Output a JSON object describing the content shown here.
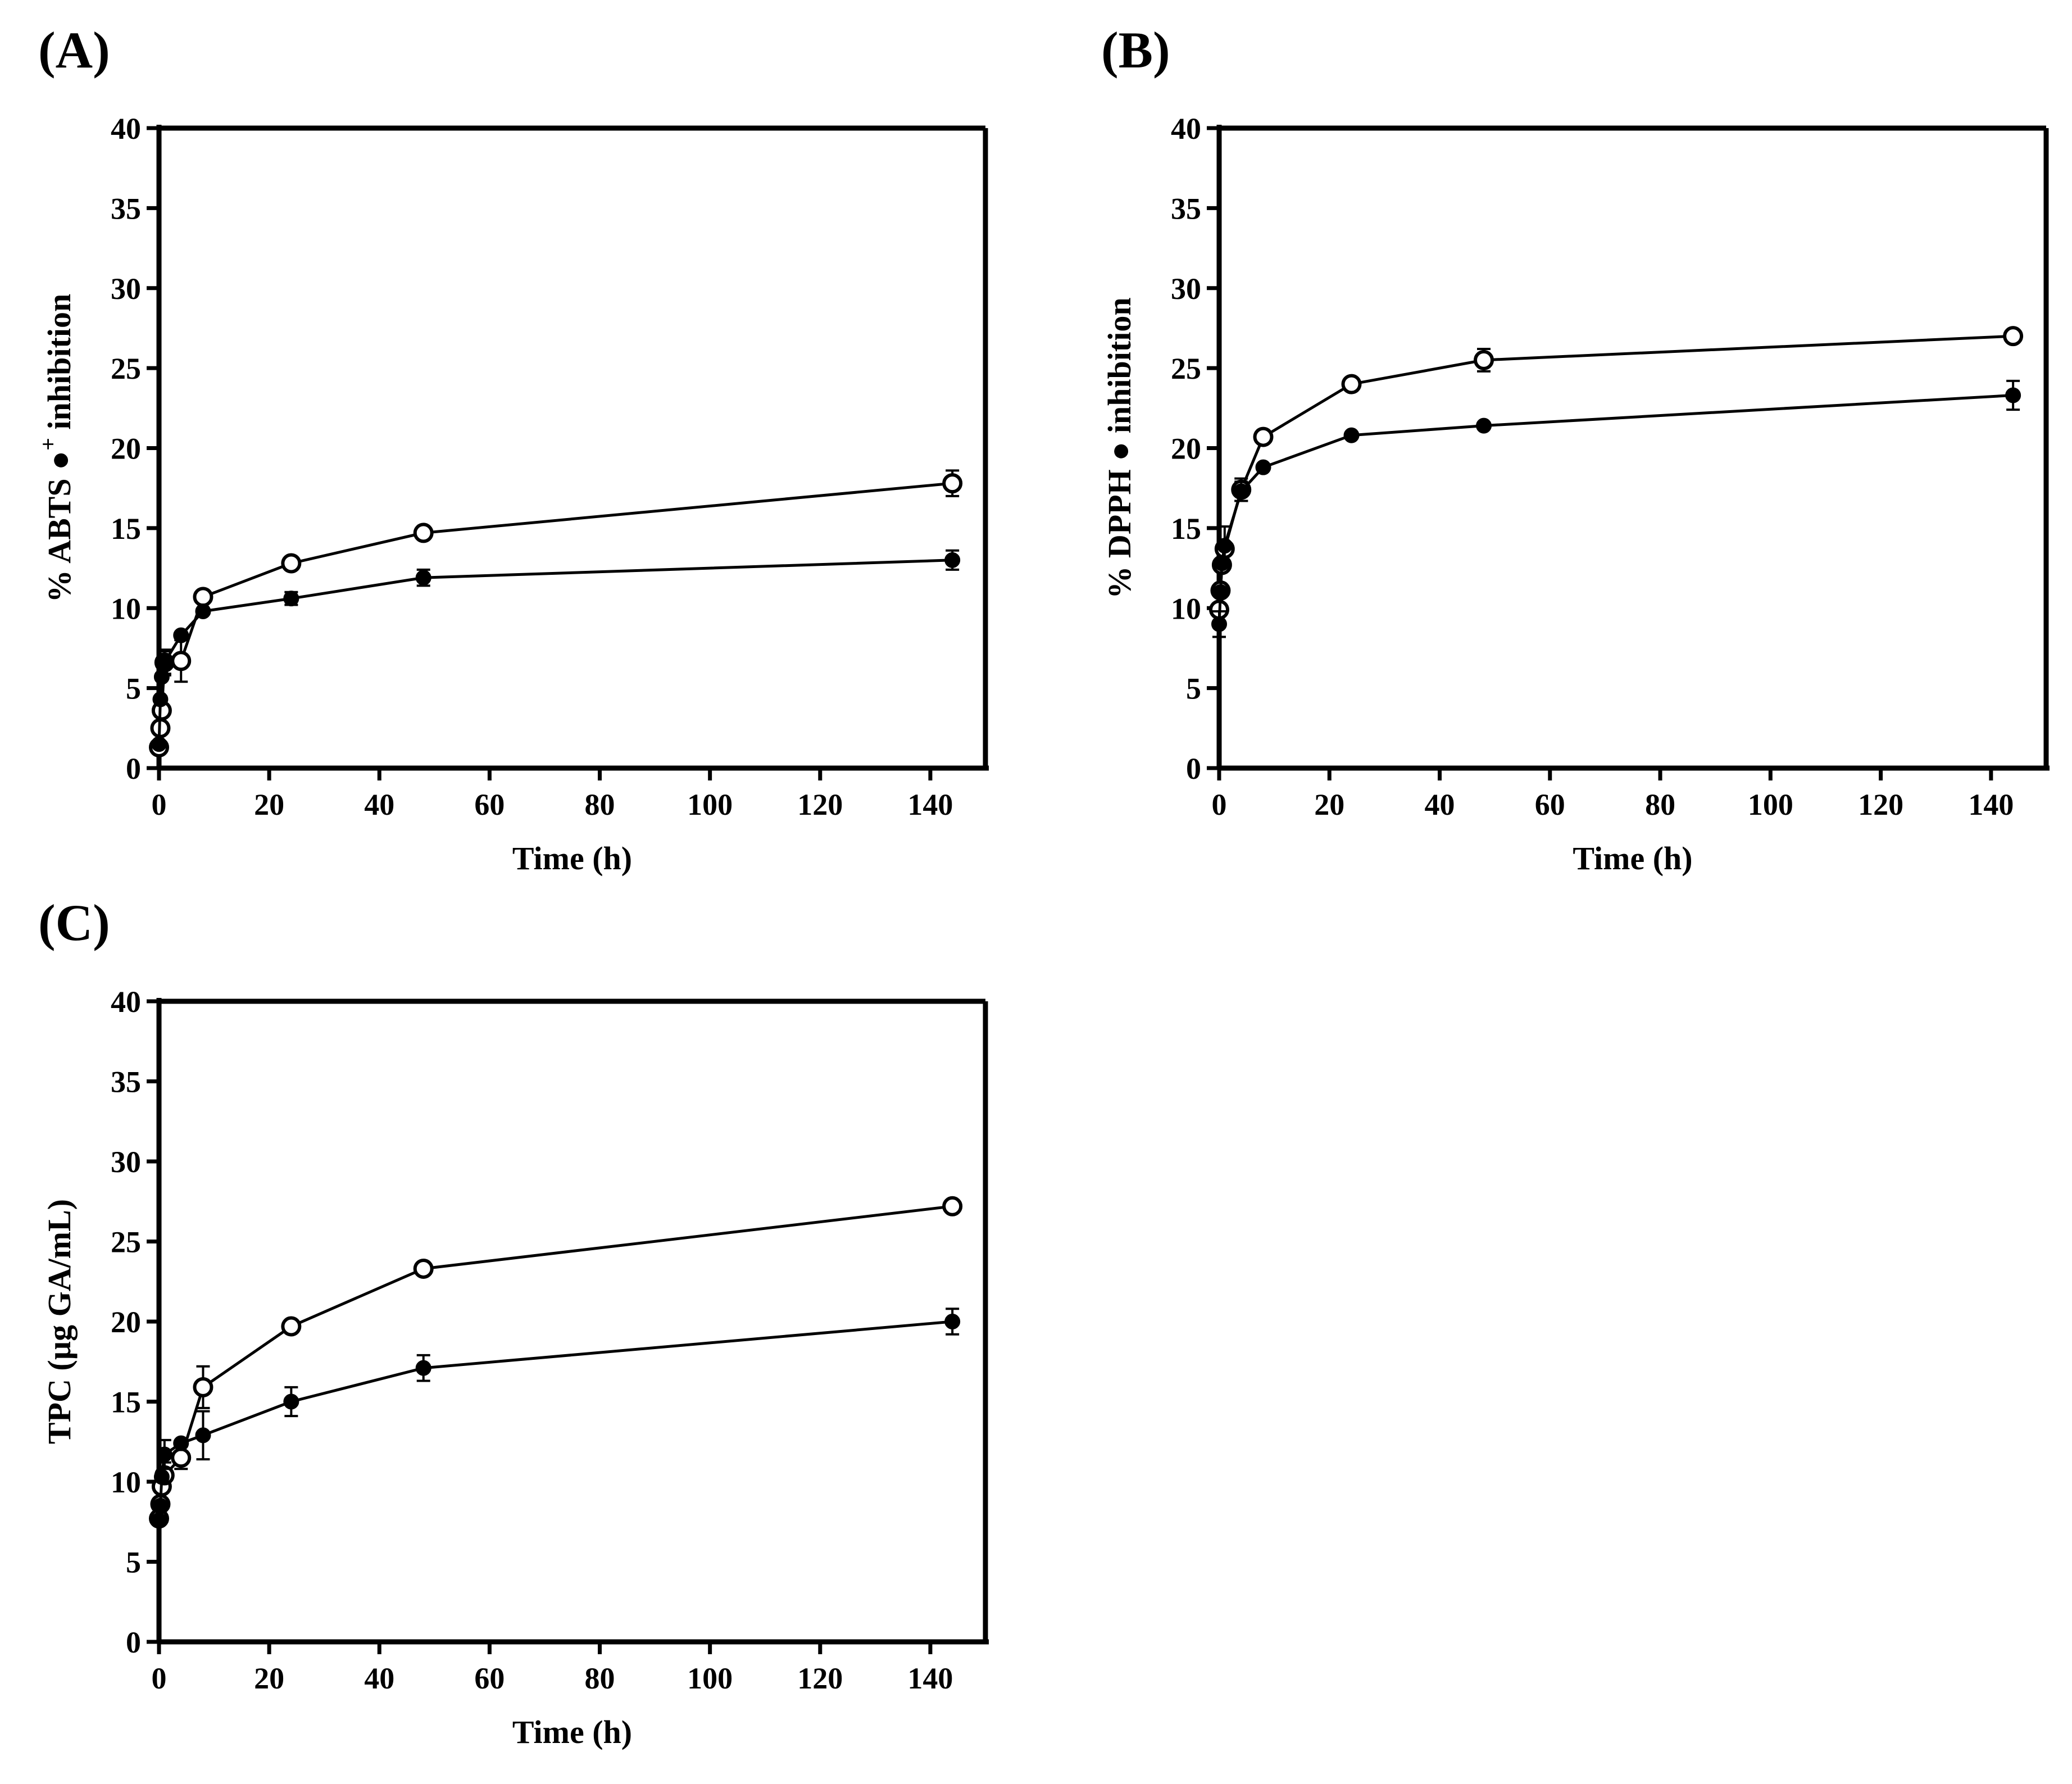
{
  "figure": {
    "panels": [
      "(A)",
      "(B)",
      "(C)"
    ]
  },
  "chart_data": [
    {
      "type": "line",
      "panel_label": "(A)",
      "xlabel": "Time (h)",
      "ylabel": "% ABTS ●+ inhibition",
      "ylabel_parts": {
        "pre": "% ABTS ",
        "symbol": "●",
        "sup": "+",
        "post": " inhibition"
      },
      "xlim": [
        0,
        150
      ],
      "ylim": [
        0,
        40
      ],
      "x_ticks": [
        0,
        20,
        40,
        60,
        80,
        100,
        120,
        140
      ],
      "y_ticks": [
        0,
        5,
        10,
        15,
        20,
        25,
        30,
        35,
        40
      ],
      "series": [
        {
          "name": "open circles",
          "marker": "open-circle",
          "x": [
            0,
            0.25,
            0.5,
            1,
            4,
            8,
            24,
            48,
            144
          ],
          "y": [
            1.3,
            2.5,
            3.6,
            6.6,
            6.7,
            10.7,
            12.8,
            14.7,
            17.8
          ],
          "err": [
            0,
            0,
            0,
            0.7,
            1.3,
            0,
            0,
            0,
            0.8
          ]
        },
        {
          "name": "filled circles",
          "marker": "filled-circle",
          "x": [
            0,
            0.25,
            0.5,
            1,
            4,
            8,
            24,
            48,
            144
          ],
          "y": [
            1.5,
            4.3,
            5.7,
            6.6,
            8.3,
            9.8,
            10.6,
            11.9,
            13.0
          ],
          "err": [
            0,
            0,
            0,
            0.8,
            0,
            0,
            0.4,
            0.5,
            0.6
          ]
        }
      ]
    },
    {
      "type": "line",
      "panel_label": "(B)",
      "xlabel": "Time (h)",
      "ylabel": "% DPPH ● inhibition",
      "ylabel_parts": {
        "pre": "% DPPH ",
        "symbol": "●",
        "sup": "",
        "post": " inhibition"
      },
      "xlim": [
        0,
        150
      ],
      "ylim": [
        0,
        40
      ],
      "x_ticks": [
        0,
        20,
        40,
        60,
        80,
        100,
        120,
        140
      ],
      "y_ticks": [
        0,
        5,
        10,
        15,
        20,
        25,
        30,
        35,
        40
      ],
      "series": [
        {
          "name": "open circles",
          "marker": "open-circle",
          "x": [
            0,
            0.25,
            0.5,
            1,
            4,
            8,
            24,
            48,
            144
          ],
          "y": [
            9.9,
            11.1,
            12.7,
            13.7,
            17.4,
            20.7,
            24.0,
            25.5,
            27.0
          ],
          "err": [
            0,
            0,
            0,
            0,
            0.7,
            0,
            0,
            0.7,
            0
          ]
        },
        {
          "name": "filled circles",
          "marker": "filled-circle",
          "x": [
            0,
            0.25,
            0.5,
            1,
            4,
            8,
            24,
            48,
            144
          ],
          "y": [
            9.0,
            11.0,
            12.8,
            13.9,
            17.3,
            18.8,
            20.8,
            21.4,
            23.3
          ],
          "err": [
            0.8,
            0,
            0,
            1.2,
            0.6,
            0,
            0,
            0,
            0.9
          ]
        }
      ]
    },
    {
      "type": "line",
      "panel_label": "(C)",
      "xlabel": "Time (h)",
      "ylabel": "TPC (µg GA/mL)",
      "ylabel_parts": {
        "pre": "TPC (µg GA/mL)",
        "symbol": "",
        "sup": "",
        "post": ""
      },
      "xlim": [
        0,
        150
      ],
      "ylim": [
        0,
        40
      ],
      "x_ticks": [
        0,
        20,
        40,
        60,
        80,
        100,
        120,
        140
      ],
      "y_ticks": [
        0,
        5,
        10,
        15,
        20,
        25,
        30,
        35,
        40
      ],
      "series": [
        {
          "name": "open circles",
          "marker": "open-circle",
          "x": [
            0,
            0.25,
            0.5,
            1,
            4,
            8,
            24,
            48,
            144
          ],
          "y": [
            7.7,
            8.6,
            9.7,
            10.4,
            11.5,
            15.9,
            19.7,
            23.3,
            27.2
          ],
          "err": [
            0,
            0,
            0,
            0.8,
            0.7,
            1.3,
            0,
            0,
            0
          ]
        },
        {
          "name": "filled circles",
          "marker": "filled-circle",
          "x": [
            0,
            0.25,
            0.5,
            1,
            4,
            8,
            24,
            48,
            144
          ],
          "y": [
            7.6,
            8.5,
            10.3,
            11.7,
            12.4,
            12.9,
            15.0,
            17.1,
            20.0
          ],
          "err": [
            0,
            0,
            0,
            0.9,
            0,
            1.5,
            0.9,
            0.8,
            0.8
          ]
        }
      ]
    }
  ]
}
